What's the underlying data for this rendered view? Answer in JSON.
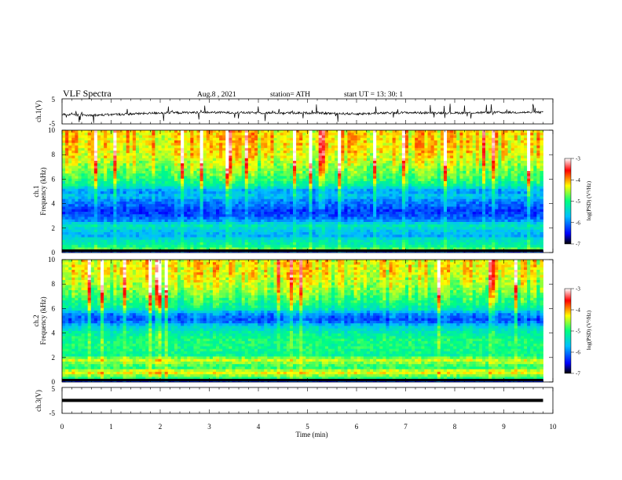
{
  "header": {
    "title": "VLF  Spectra",
    "date": "Aug.8  , 2021",
    "station": "station= ATH",
    "start": "start  UT  =   13: 30: 1"
  },
  "chart_data": [
    {
      "type": "line",
      "name": "ch1-waveform",
      "ylabel": "ch.1(V)",
      "xlim": [
        0,
        10
      ],
      "ylim": [
        -5,
        5
      ],
      "yticks": [
        "5",
        "-5"
      ],
      "data_end": 9.8,
      "baseline": -1.0,
      "series": [
        {
          "name": "",
          "trend": [
            [
              0,
              -1.2
            ],
            [
              0.5,
              -1.6
            ],
            [
              1.0,
              -1.3
            ],
            [
              2.0,
              -0.6
            ],
            [
              3.0,
              -0.4
            ],
            [
              4.0,
              -0.6
            ],
            [
              5.0,
              -0.6
            ],
            [
              6.0,
              -1.0
            ],
            [
              7.0,
              -0.5
            ],
            [
              8.0,
              -0.6
            ],
            [
              9.0,
              -0.4
            ],
            [
              9.8,
              -0.4
            ]
          ]
        }
      ]
    },
    {
      "type": "heatmap",
      "name": "ch1-spectrogram",
      "ylabel": "Frequency  (kHz)",
      "channel": "ch.1",
      "xlim": [
        0,
        10
      ],
      "ylim": [
        0,
        10
      ],
      "yticks": [
        "10",
        "8",
        "6",
        "4",
        "2",
        "0"
      ],
      "data_end": 9.8,
      "colorbar": {
        "label": "log(PSD) (V²/Hz)",
        "range": [
          -7,
          -3
        ],
        "ticks": [
          "-3",
          "-4",
          "-5",
          "-6",
          "-7"
        ]
      },
      "profile": [
        [
          0.0,
          -7.0
        ],
        [
          0.3,
          -4.8
        ],
        [
          0.6,
          -5.2
        ],
        [
          1.0,
          -5.3
        ],
        [
          1.4,
          -5.8
        ],
        [
          1.8,
          -5.6
        ],
        [
          2.2,
          -5.3
        ],
        [
          2.6,
          -5.9
        ],
        [
          3.0,
          -6.2
        ],
        [
          3.4,
          -6.3
        ],
        [
          3.8,
          -6.1
        ],
        [
          4.2,
          -6.0
        ],
        [
          4.6,
          -5.6
        ],
        [
          5.0,
          -5.9
        ],
        [
          5.5,
          -5.2
        ],
        [
          6.0,
          -4.9
        ],
        [
          7.0,
          -4.6
        ],
        [
          8.0,
          -4.3
        ],
        [
          9.0,
          -4.2
        ],
        [
          10.0,
          -4.2
        ]
      ]
    },
    {
      "type": "heatmap",
      "name": "ch2-spectrogram",
      "ylabel": "Frequency  (kHz)",
      "channel": "ch.2",
      "xlim": [
        0,
        10
      ],
      "ylim": [
        0,
        10
      ],
      "yticks": [
        "10",
        "8",
        "6",
        "4",
        "2",
        "0"
      ],
      "data_end": 9.8,
      "colorbar": {
        "label": "log(PSD) (V²/Hz)",
        "range": [
          -7,
          -3
        ],
        "ticks": [
          "-3",
          "-4",
          "-5",
          "-6",
          "-7"
        ]
      },
      "profile": [
        [
          0.0,
          -7.0
        ],
        [
          0.3,
          -5.0
        ],
        [
          0.8,
          -4.2
        ],
        [
          1.2,
          -5.0
        ],
        [
          1.8,
          -4.4
        ],
        [
          2.2,
          -5.1
        ],
        [
          2.8,
          -5.0
        ],
        [
          3.4,
          -5.0
        ],
        [
          4.0,
          -5.2
        ],
        [
          4.6,
          -5.6
        ],
        [
          5.0,
          -6.2
        ],
        [
          5.6,
          -5.9
        ],
        [
          6.0,
          -5.2
        ],
        [
          7.0,
          -4.8
        ],
        [
          8.0,
          -4.5
        ],
        [
          9.0,
          -4.3
        ],
        [
          10.0,
          -4.3
        ]
      ]
    },
    {
      "type": "line",
      "name": "ch3-waveform",
      "ylabel": "ch.3(V)",
      "xlim": [
        0,
        10
      ],
      "ylim": [
        -5,
        5
      ],
      "yticks": [
        "5",
        "-5"
      ],
      "data_end": 9.8,
      "baseline": 0.0,
      "series": [
        {
          "name": "",
          "trend": [
            [
              0,
              0.0
            ],
            [
              9.8,
              0.0
            ]
          ]
        }
      ]
    }
  ],
  "xaxis": {
    "label": "Time  (min)",
    "ticks": [
      "0",
      "1",
      "2",
      "3",
      "4",
      "5",
      "6",
      "7",
      "8",
      "9",
      "10"
    ]
  },
  "colors": {
    "spectrogram_scale": [
      "#000000",
      "#0000ff",
      "#00bfff",
      "#00ff80",
      "#ffff00",
      "#ff0000",
      "#ffffff"
    ]
  }
}
